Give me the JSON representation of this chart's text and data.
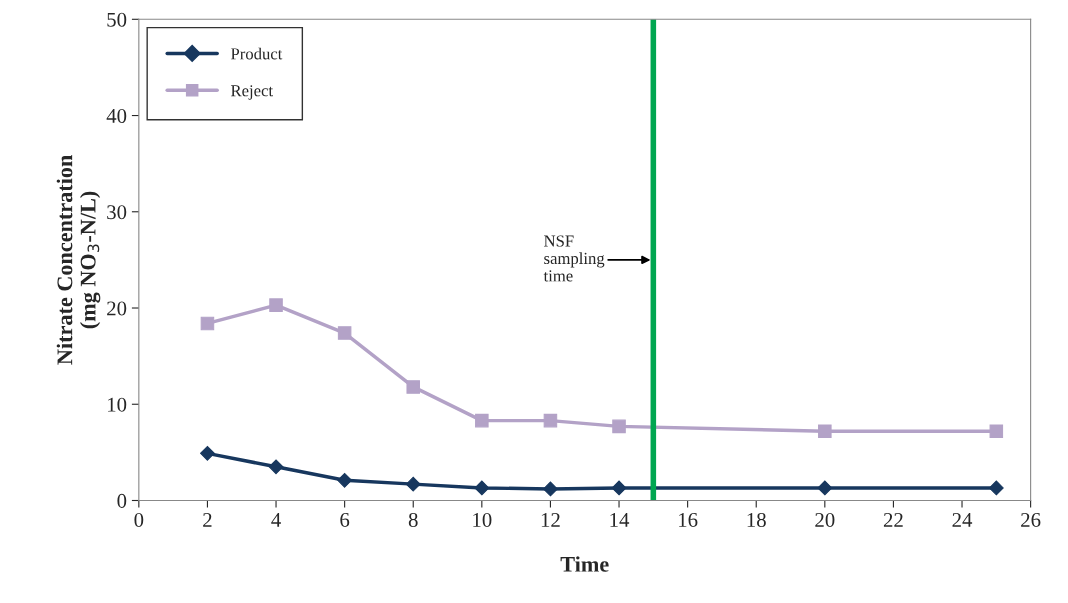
{
  "chart_data": {
    "type": "line",
    "xlabel": "Time",
    "ylabel": "Nitrate Concentration\n(mg NO$_{3}$-N/L)",
    "x": [
      2,
      4,
      6,
      8,
      10,
      12,
      14,
      20,
      25
    ],
    "series": [
      {
        "name": "Product",
        "color": "#17375e",
        "marker": "diamond",
        "values": [
          4.9,
          3.5,
          2.1,
          1.7,
          1.3,
          1.2,
          1.3,
          1.3,
          1.3
        ]
      },
      {
        "name": "Reject",
        "color": "#b3a2c7",
        "marker": "square",
        "values": [
          18.4,
          20.3,
          17.4,
          11.8,
          8.3,
          8.3,
          7.7,
          7.2,
          7.2
        ]
      }
    ],
    "xlim": [
      0,
      26
    ],
    "xticks": [
      0,
      2,
      4,
      6,
      8,
      10,
      12,
      14,
      16,
      18,
      20,
      22,
      24,
      26
    ],
    "ylim": [
      0,
      50
    ],
    "yticks": [
      0,
      10,
      20,
      30,
      40,
      50
    ],
    "ref_lines": [
      {
        "axis": "x",
        "value": 15,
        "color": "#00a651"
      }
    ],
    "annotations": [
      {
        "text": "NSF\nsampling\ntime",
        "x": 15,
        "y": 25
      }
    ],
    "grid": false,
    "legend": "top left",
    "line_style": "solid"
  }
}
